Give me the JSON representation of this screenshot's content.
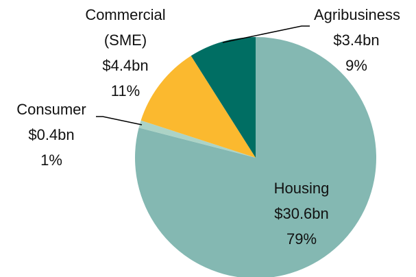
{
  "chart_data": {
    "type": "pie",
    "categories": [
      "Housing",
      "Consumer",
      "Commercial (SME)",
      "Agribusiness"
    ],
    "amount_labels": [
      "$30.6bn",
      "$0.4bn",
      "$4.4bn",
      "$3.4bn"
    ],
    "values": [
      79,
      1,
      11,
      9
    ],
    "value_labels": [
      "79%",
      "1%",
      "11%",
      "9%"
    ],
    "colors": [
      "#84b8b2",
      "#acd3c6",
      "#fbb92f",
      "#006e63"
    ]
  }
}
